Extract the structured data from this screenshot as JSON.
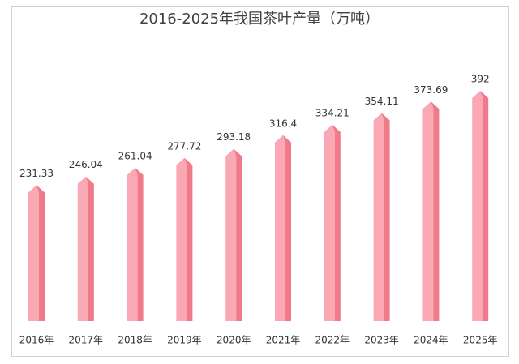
{
  "chart_data": {
    "type": "bar",
    "title": "2016-2025年我国茶叶产量（万吨）",
    "categories": [
      "2016年",
      "2017年",
      "2018年",
      "2019年",
      "2020年",
      "2021年",
      "2022年",
      "2023年",
      "2024年",
      "2025年"
    ],
    "values": [
      231.33,
      246.04,
      261.04,
      277.72,
      293.18,
      316.4,
      334.21,
      354.11,
      373.69,
      392
    ],
    "color": "#f9a8b4"
  }
}
